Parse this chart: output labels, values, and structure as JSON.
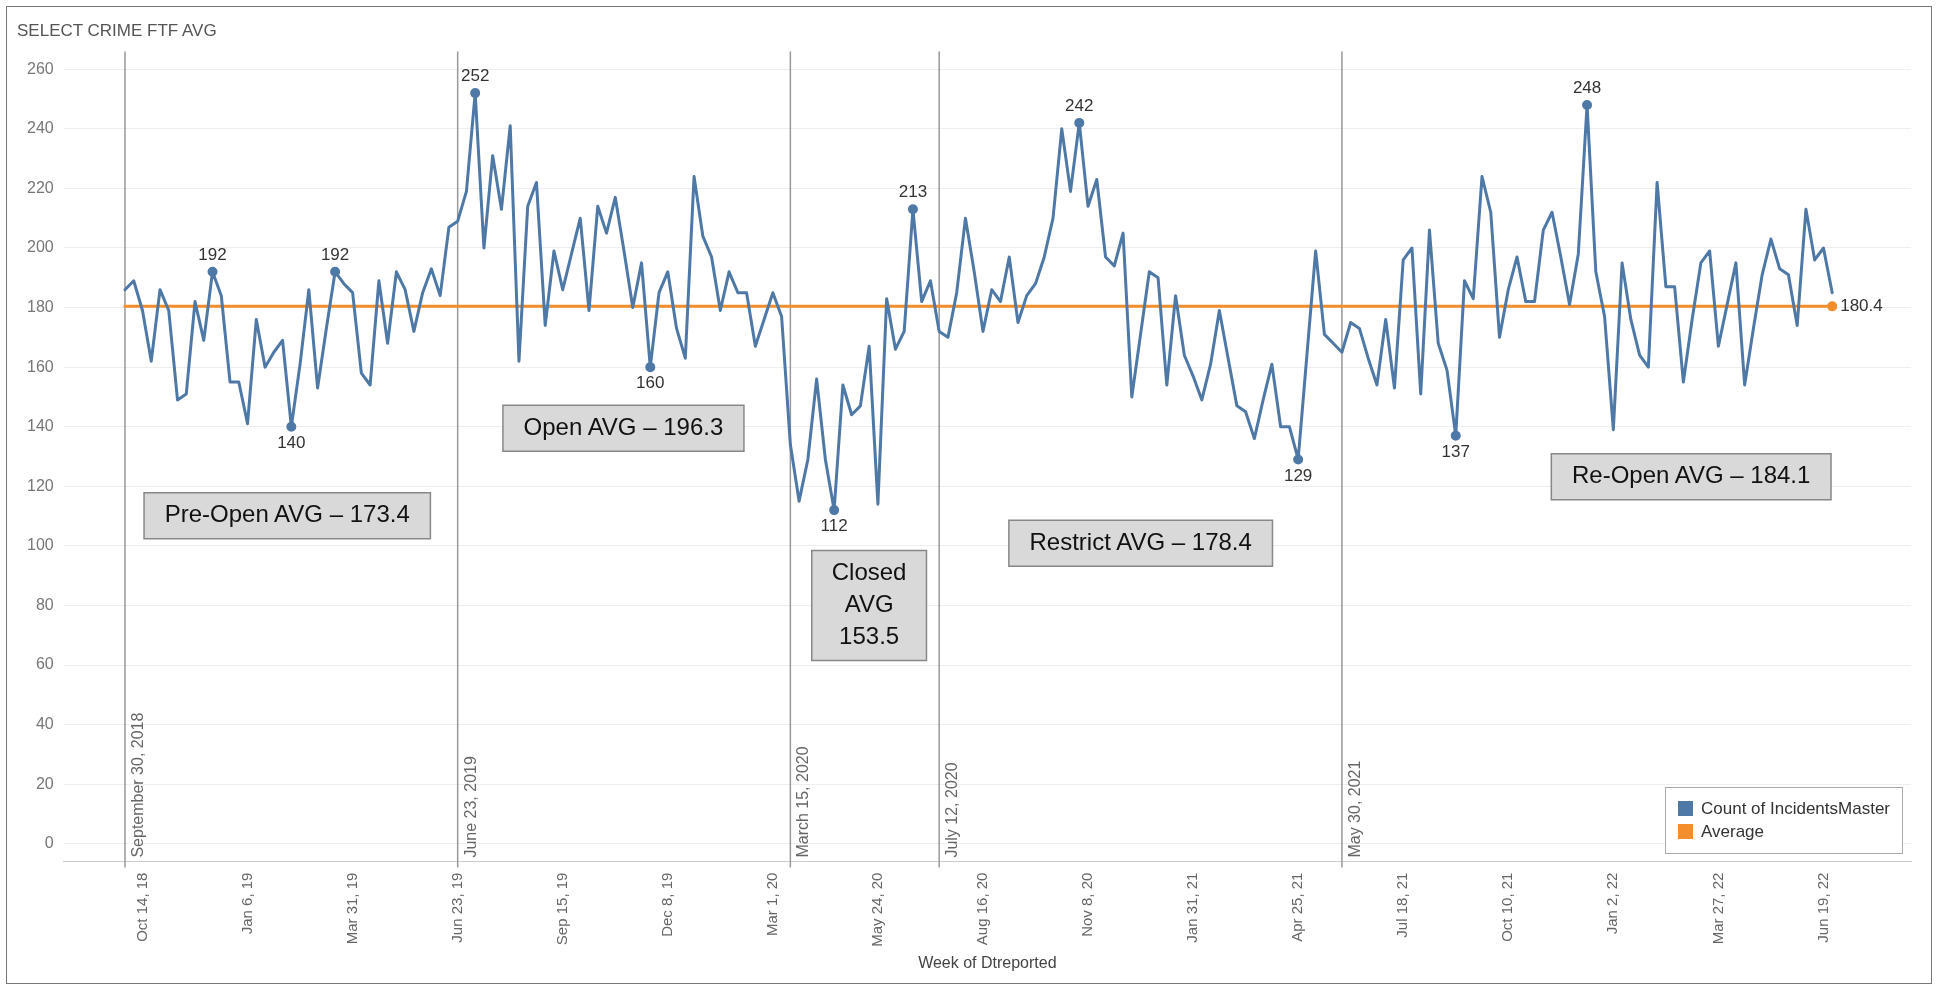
{
  "chart_data": {
    "type": "line",
    "title": "SELECT CRIME FTF AVG",
    "xlabel": "Week of Dtreported",
    "x": [
      "2018-09-30",
      "2018-10-07",
      "2018-10-14",
      "2018-10-21",
      "2018-10-28",
      "2018-11-04",
      "2018-11-11",
      "2018-11-18",
      "2018-11-25",
      "2018-12-02",
      "2018-12-09",
      "2018-12-16",
      "2018-12-23",
      "2018-12-30",
      "2019-01-06",
      "2019-01-13",
      "2019-01-20",
      "2019-01-27",
      "2019-02-03",
      "2019-02-10",
      "2019-02-17",
      "2019-02-24",
      "2019-03-03",
      "2019-03-10",
      "2019-03-17",
      "2019-03-24",
      "2019-03-31",
      "2019-04-07",
      "2019-04-14",
      "2019-04-21",
      "2019-04-28",
      "2019-05-05",
      "2019-05-12",
      "2019-05-19",
      "2019-05-26",
      "2019-06-02",
      "2019-06-09",
      "2019-06-16",
      "2019-06-23",
      "2019-06-30",
      "2019-07-07",
      "2019-07-14",
      "2019-07-21",
      "2019-07-28",
      "2019-08-04",
      "2019-08-11",
      "2019-08-18",
      "2019-08-25",
      "2019-09-01",
      "2019-09-08",
      "2019-09-15",
      "2019-09-22",
      "2019-09-29",
      "2019-10-06",
      "2019-10-13",
      "2019-10-20",
      "2019-10-27",
      "2019-11-03",
      "2019-11-10",
      "2019-11-17",
      "2019-11-24",
      "2019-12-01",
      "2019-12-08",
      "2019-12-15",
      "2019-12-22",
      "2019-12-29",
      "2020-01-05",
      "2020-01-12",
      "2020-01-19",
      "2020-01-26",
      "2020-02-02",
      "2020-02-09",
      "2020-02-16",
      "2020-02-23",
      "2020-03-01",
      "2020-03-08",
      "2020-03-15",
      "2020-03-22",
      "2020-03-29",
      "2020-04-05",
      "2020-04-12",
      "2020-04-19",
      "2020-04-26",
      "2020-05-03",
      "2020-05-10",
      "2020-05-17",
      "2020-05-24",
      "2020-05-31",
      "2020-06-07",
      "2020-06-14",
      "2020-06-21",
      "2020-06-28",
      "2020-07-05",
      "2020-07-12",
      "2020-07-19",
      "2020-07-26",
      "2020-08-02",
      "2020-08-09",
      "2020-08-16",
      "2020-08-23",
      "2020-08-30",
      "2020-09-06",
      "2020-09-13",
      "2020-09-20",
      "2020-09-27",
      "2020-10-04",
      "2020-10-11",
      "2020-10-18",
      "2020-10-25",
      "2020-11-01",
      "2020-11-08",
      "2020-11-15",
      "2020-11-22",
      "2020-11-29",
      "2020-12-06",
      "2020-12-13",
      "2020-12-20",
      "2020-12-27",
      "2021-01-03",
      "2021-01-10",
      "2021-01-17",
      "2021-01-24",
      "2021-01-31",
      "2021-02-07",
      "2021-02-14",
      "2021-02-21",
      "2021-02-28",
      "2021-03-07",
      "2021-03-14",
      "2021-03-21",
      "2021-03-28",
      "2021-04-04",
      "2021-04-11",
      "2021-04-18",
      "2021-04-25",
      "2021-05-02",
      "2021-05-09",
      "2021-05-16",
      "2021-05-23",
      "2021-05-30",
      "2021-06-06",
      "2021-06-13",
      "2021-06-20",
      "2021-06-27",
      "2021-07-04",
      "2021-07-11",
      "2021-07-18",
      "2021-07-25",
      "2021-08-01",
      "2021-08-08",
      "2021-08-15",
      "2021-08-22",
      "2021-08-29",
      "2021-09-05",
      "2021-09-12",
      "2021-09-19",
      "2021-09-26",
      "2021-10-03",
      "2021-10-10",
      "2021-10-17",
      "2021-10-24",
      "2021-10-31",
      "2021-11-07",
      "2021-11-14",
      "2021-11-21",
      "2021-11-28",
      "2021-12-05",
      "2021-12-12",
      "2021-12-19",
      "2021-12-26",
      "2022-01-02",
      "2022-01-09",
      "2022-01-16",
      "2022-01-23",
      "2022-01-30",
      "2022-02-06",
      "2022-02-13",
      "2022-02-20",
      "2022-02-27",
      "2022-03-06",
      "2022-03-13",
      "2022-03-20",
      "2022-03-27",
      "2022-04-03",
      "2022-04-10",
      "2022-04-17",
      "2022-04-24",
      "2022-05-01",
      "2022-05-08",
      "2022-05-15",
      "2022-05-22",
      "2022-05-29",
      "2022-06-05",
      "2022-06-12",
      "2022-06-19",
      "2022-06-26"
    ],
    "series": [
      {
        "name": "Count of IncidentsMaster",
        "color": "#4e79a7",
        "values": [
          186,
          189,
          179,
          162,
          186,
          179,
          149,
          151,
          182,
          169,
          192,
          184,
          155,
          155,
          141,
          176,
          160,
          165,
          169,
          140,
          161,
          186,
          153,
          173,
          192,
          188,
          185,
          158,
          154,
          189,
          168,
          192,
          186,
          172,
          185,
          193,
          184,
          207,
          209,
          219,
          252,
          200,
          231,
          213,
          241,
          162,
          214,
          222,
          174,
          199,
          186,
          198,
          210,
          179,
          214,
          205,
          217,
          199,
          180,
          195,
          160,
          185,
          192,
          173,
          163,
          224,
          204,
          197,
          179,
          192,
          185,
          185,
          167,
          176,
          185,
          177,
          134,
          115,
          129,
          156,
          129,
          112,
          154,
          144,
          147,
          167,
          114,
          183,
          166,
          172,
          213,
          182,
          189,
          172,
          170,
          185,
          210,
          192,
          172,
          186,
          182,
          197,
          175,
          184,
          188,
          197,
          210,
          240,
          219,
          242,
          214,
          223,
          197,
          194,
          205,
          150,
          171,
          192,
          190,
          154,
          184,
          164,
          157,
          149,
          161,
          179,
          163,
          147,
          145,
          136,
          149,
          161,
          140,
          140,
          129,
          164,
          199,
          171,
          168,
          165,
          175,
          173,
          163,
          154,
          176,
          153,
          196,
          200,
          151,
          206,
          168,
          159,
          137,
          189,
          183,
          224,
          212,
          170,
          186,
          197,
          182,
          182,
          206,
          212,
          197,
          181,
          198,
          248,
          192,
          177,
          139,
          195,
          176,
          164,
          160,
          222,
          187,
          187,
          155,
          176,
          195,
          199,
          167,
          181,
          195,
          154,
          173,
          191,
          203,
          193,
          191,
          174,
          213,
          196,
          200,
          185
        ],
        "value_labels": [
          null,
          null,
          null,
          null,
          null,
          null,
          null,
          null,
          null,
          null,
          "192",
          null,
          null,
          null,
          null,
          null,
          null,
          null,
          null,
          "140",
          null,
          null,
          null,
          null,
          "192",
          null,
          null,
          null,
          null,
          null,
          null,
          null,
          null,
          null,
          null,
          null,
          null,
          null,
          null,
          null,
          "252",
          null,
          null,
          null,
          null,
          null,
          null,
          null,
          null,
          null,
          null,
          null,
          null,
          null,
          null,
          null,
          null,
          null,
          null,
          null,
          "160",
          null,
          null,
          null,
          null,
          null,
          null,
          null,
          null,
          null,
          null,
          null,
          null,
          null,
          null,
          null,
          null,
          null,
          null,
          null,
          null,
          "112",
          null,
          null,
          null,
          null,
          null,
          null,
          null,
          null,
          "213",
          null,
          null,
          null,
          null,
          null,
          null,
          null,
          null,
          null,
          null,
          null,
          null,
          null,
          null,
          null,
          null,
          null,
          null,
          "242",
          null,
          null,
          null,
          null,
          null,
          null,
          null,
          null,
          null,
          null,
          null,
          null,
          null,
          null,
          null,
          null,
          null,
          null,
          null,
          null,
          null,
          null,
          null,
          null,
          "129",
          null,
          null,
          null,
          null,
          null,
          null,
          null,
          null,
          null,
          null,
          null,
          null,
          null,
          null,
          null,
          null,
          null,
          "137",
          null,
          null,
          null,
          null,
          null,
          null,
          null,
          null,
          null,
          null,
          null,
          null,
          null,
          null,
          "248",
          null,
          null,
          null,
          null,
          null,
          null,
          null,
          null,
          null,
          null,
          null,
          null,
          null,
          null,
          null,
          null,
          null,
          null,
          null,
          null,
          null,
          null,
          null,
          null,
          null,
          null,
          null,
          null
        ]
      },
      {
        "name": "Average",
        "color": "#f28e2b",
        "x": [
          "2018-09-30",
          "2022-06-26"
        ],
        "values": [
          180.4,
          180.4
        ],
        "value_labels": [
          null,
          "180.4"
        ]
      }
    ],
    "xlim": [
      "2018-08-12",
      "2022-08-28"
    ],
    "xticks": [
      {
        "value": "2018-10-14",
        "label": "Oct 14, 18"
      },
      {
        "value": "2019-01-06",
        "label": "Jan 6, 19"
      },
      {
        "value": "2019-03-31",
        "label": "Mar 31, 19"
      },
      {
        "value": "2019-06-23",
        "label": "Jun 23, 19"
      },
      {
        "value": "2019-09-15",
        "label": "Sep 15, 19"
      },
      {
        "value": "2019-12-08",
        "label": "Dec 8, 19"
      },
      {
        "value": "2020-03-01",
        "label": "Mar 1, 20"
      },
      {
        "value": "2020-05-24",
        "label": "May 24, 20"
      },
      {
        "value": "2020-08-16",
        "label": "Aug 16, 20"
      },
      {
        "value": "2020-11-08",
        "label": "Nov 8, 20"
      },
      {
        "value": "2021-01-31",
        "label": "Jan 31, 21"
      },
      {
        "value": "2021-04-25",
        "label": "Apr 25, 21"
      },
      {
        "value": "2021-07-18",
        "label": "Jul 18, 21"
      },
      {
        "value": "2021-10-10",
        "label": "Oct 10, 21"
      },
      {
        "value": "2022-01-02",
        "label": "Jan 2, 22"
      },
      {
        "value": "2022-03-27",
        "label": "Mar 27, 22"
      },
      {
        "value": "2022-06-19",
        "label": "Jun 19, 22"
      }
    ],
    "ylim": [
      -6,
      266
    ],
    "yticks": [
      0,
      20,
      40,
      60,
      80,
      100,
      120,
      140,
      160,
      180,
      200,
      220,
      240,
      260
    ],
    "grid": "y",
    "legend": "bottom right",
    "ref_lines": [
      {
        "axis": "x",
        "value": "2018-09-30",
        "label": "September 30, 2018",
        "color": "#999999"
      },
      {
        "axis": "x",
        "value": "2019-06-23",
        "label": "June 23, 2019",
        "color": "#999999"
      },
      {
        "axis": "x",
        "value": "2020-03-15",
        "label": "March 15, 2020",
        "color": "#999999"
      },
      {
        "axis": "x",
        "value": "2020-07-12",
        "label": "July 12, 2020",
        "color": "#999999"
      },
      {
        "axis": "x",
        "value": "2021-05-30",
        "label": "May 30, 2021",
        "color": "#999999"
      }
    ],
    "annotations": [
      "Pre-Open AVG – 173.4",
      "Open AVG – 196.3",
      "Closed\nAVG\n153.5",
      "Restrict AVG – 178.4",
      "Re-Open AVG – 184.1"
    ]
  }
}
